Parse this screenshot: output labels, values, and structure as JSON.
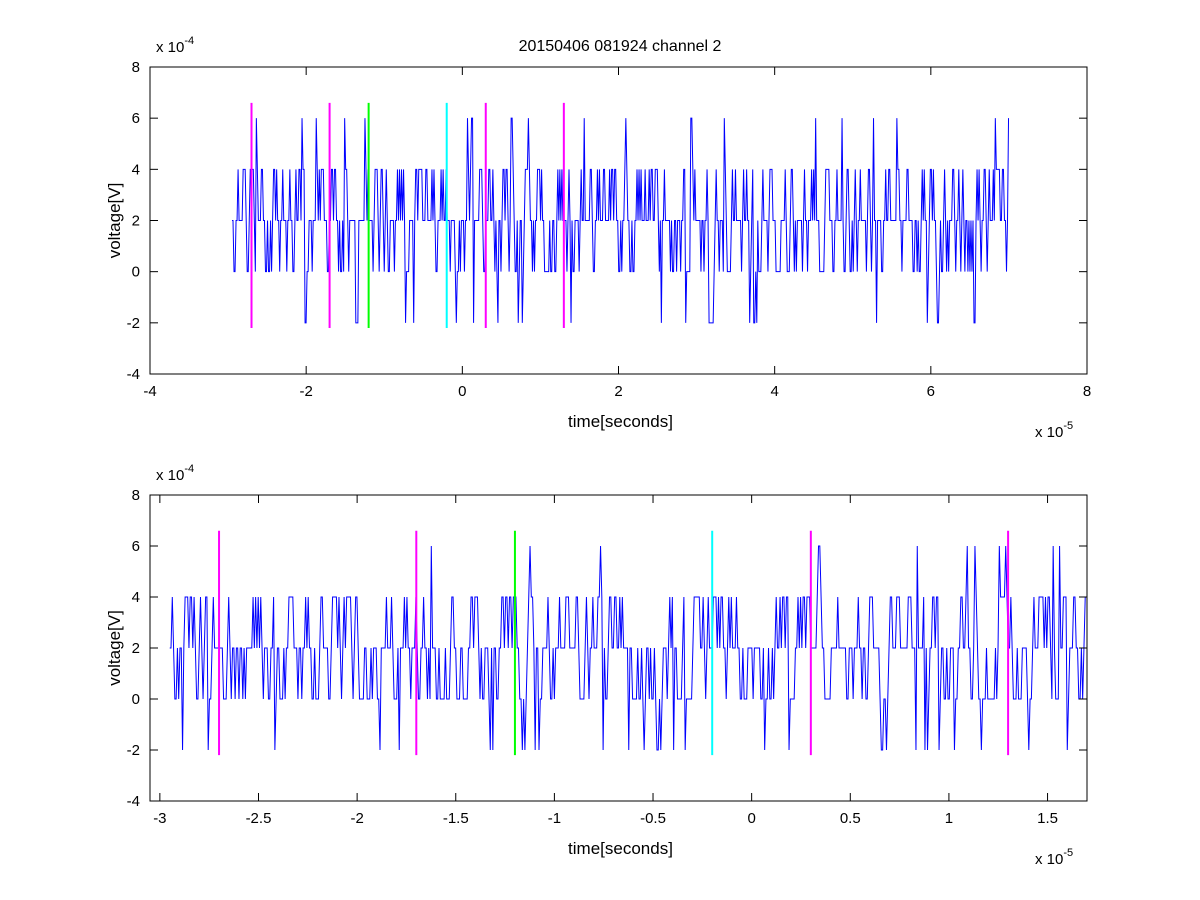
{
  "title": "20150406 081924 channel 2",
  "chart_data": [
    {
      "type": "line",
      "xlabel": "time[seconds]",
      "ylabel": "voltage[V]",
      "x_multiplier": {
        "base": "x 10",
        "exp": "-5"
      },
      "y_multiplier": {
        "base": "x 10",
        "exp": "-4"
      },
      "xlim": [
        -4,
        8
      ],
      "ylim": [
        -4,
        8
      ],
      "xticks": [
        "-4",
        "-2",
        "0",
        "2",
        "4",
        "6",
        "8"
      ],
      "yticks": [
        "-4",
        "-2",
        "0",
        "2",
        "4",
        "6",
        "8"
      ],
      "xtick_values": [
        -4,
        -2,
        0,
        2,
        4,
        6,
        8
      ],
      "ytick_values": [
        -4,
        -2,
        0,
        2,
        4,
        6,
        8
      ],
      "grid": false,
      "series": [
        {
          "color": "#0000ff",
          "x_range": [
            -2.95,
            7.0
          ],
          "levels": [
            -2,
            0,
            2,
            4,
            6
          ],
          "baseline": 2,
          "seed": 7,
          "step": 0.013
        }
      ],
      "markers": [
        {
          "x": -2.7,
          "y_range": [
            -2.2,
            6.6
          ],
          "color": "#ff00ff"
        },
        {
          "x": -1.7,
          "y_range": [
            -2.2,
            6.6
          ],
          "color": "#ff00ff"
        },
        {
          "x": -1.2,
          "y_range": [
            -2.2,
            6.6
          ],
          "color": "#00ff00"
        },
        {
          "x": -0.2,
          "y_range": [
            -2.2,
            6.6
          ],
          "color": "#00ffff"
        },
        {
          "x": 0.3,
          "y_range": [
            -2.2,
            6.6
          ],
          "color": "#ff00ff"
        },
        {
          "x": 1.3,
          "y_range": [
            -2.2,
            6.6
          ],
          "color": "#ff00ff"
        }
      ]
    },
    {
      "type": "line",
      "xlabel": "time[seconds]",
      "ylabel": "voltage[V]",
      "x_multiplier": {
        "base": "x 10",
        "exp": "-5"
      },
      "y_multiplier": {
        "base": "x 10",
        "exp": "-4"
      },
      "xlim": [
        -3.05,
        1.7
      ],
      "ylim": [
        -4,
        8
      ],
      "xticks": [
        "-3",
        "-2.5",
        "-2",
        "-1.5",
        "-1",
        "-0.5",
        "0",
        "0.5",
        "1",
        "1.5"
      ],
      "yticks": [
        "-4",
        "-2",
        "0",
        "2",
        "4",
        "6",
        "8"
      ],
      "xtick_values": [
        -3,
        -2.5,
        -2,
        -1.5,
        -1,
        -0.5,
        0,
        0.5,
        1,
        1.5
      ],
      "ytick_values": [
        -4,
        -2,
        0,
        2,
        4,
        6,
        8
      ],
      "grid": false,
      "series": [
        {
          "color": "#0000ff",
          "x_range": [
            -2.95,
            1.7
          ],
          "levels": [
            -2,
            0,
            2,
            4,
            6
          ],
          "baseline": 2,
          "seed": 11,
          "step": 0.0065
        }
      ],
      "markers": [
        {
          "x": -2.7,
          "y_range": [
            -2.2,
            6.6
          ],
          "color": "#ff00ff"
        },
        {
          "x": -1.7,
          "y_range": [
            -2.2,
            6.6
          ],
          "color": "#ff00ff"
        },
        {
          "x": -1.2,
          "y_range": [
            -2.2,
            6.6
          ],
          "color": "#00ff00"
        },
        {
          "x": -0.2,
          "y_range": [
            -2.2,
            6.6
          ],
          "color": "#00ffff"
        },
        {
          "x": 0.3,
          "y_range": [
            -2.2,
            6.6
          ],
          "color": "#ff00ff"
        },
        {
          "x": 1.3,
          "y_range": [
            -2.2,
            6.6
          ],
          "color": "#ff00ff"
        }
      ]
    }
  ]
}
